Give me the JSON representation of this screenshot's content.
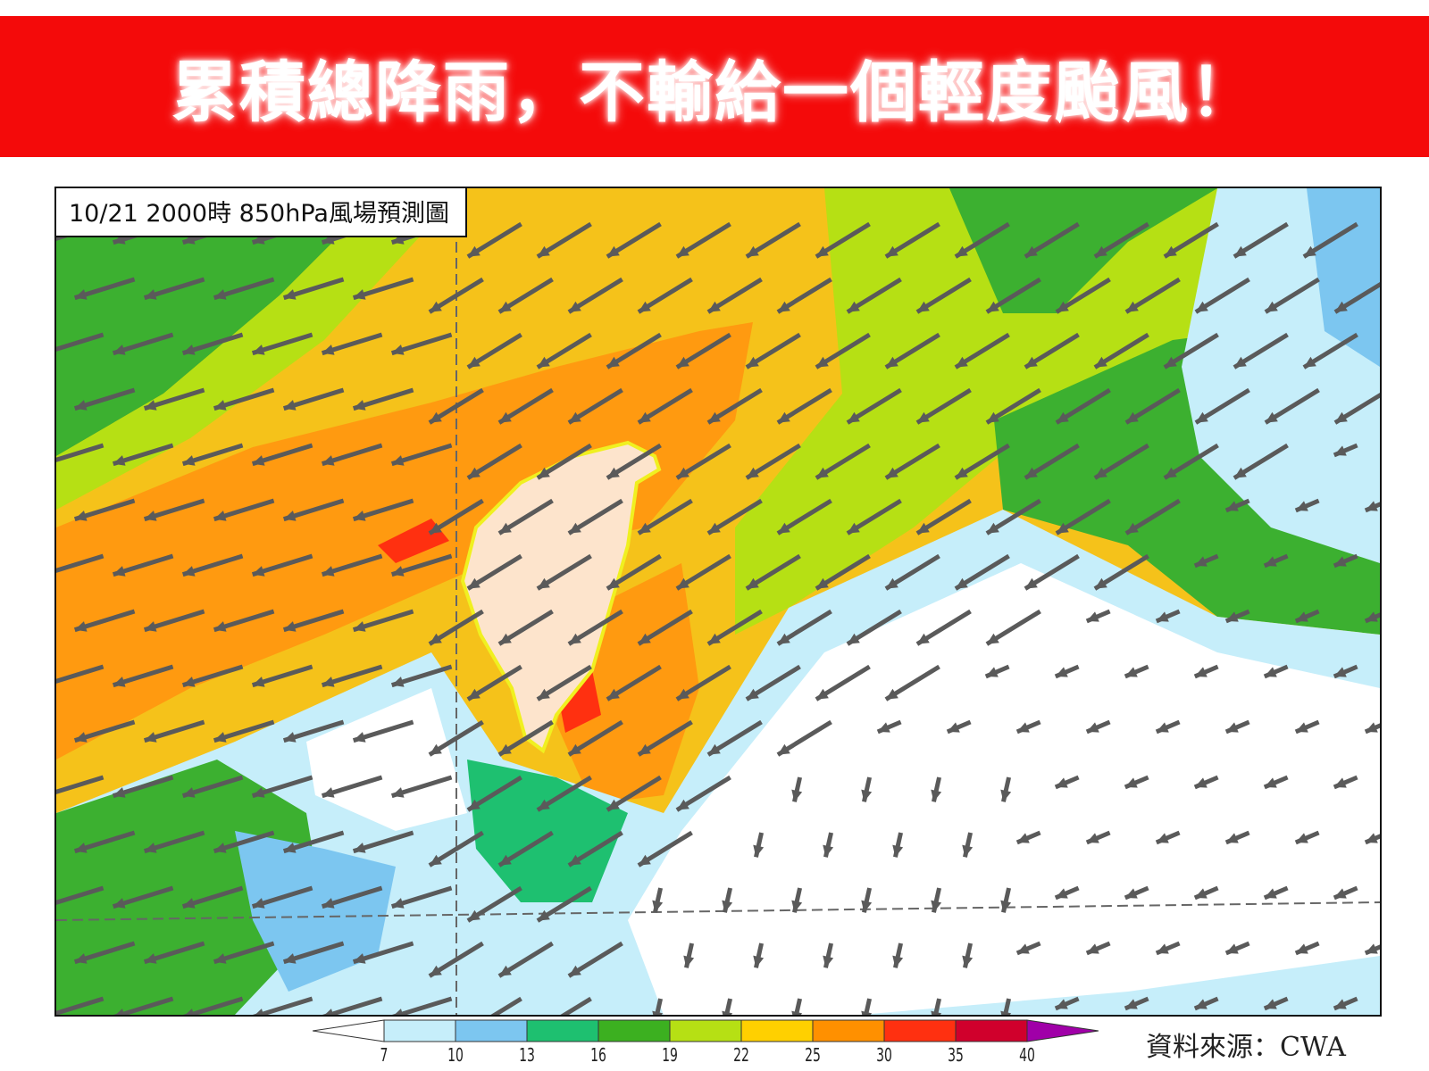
{
  "banner": {
    "title": "累積總降雨，不輸給一個輕度颱風！",
    "color": "#f40a0a"
  },
  "map": {
    "label": "10/21 2000時  850hPa風場預測圖",
    "field": "850hPa wind speed",
    "highlight_outline_color": "#f0f020"
  },
  "colorbar": {
    "ticks": [
      "7",
      "10",
      "13",
      "16",
      "19",
      "22",
      "25",
      "30",
      "35",
      "40"
    ],
    "colors": [
      "#ffffff",
      "#c6eefa",
      "#7cc6f0",
      "#1ec070",
      "#3cb020",
      "#b6e014",
      "#ffd000",
      "#ff9000",
      "#ff3010",
      "#d0002c",
      "#a000a8"
    ]
  },
  "source": "資料來源：CWA"
}
